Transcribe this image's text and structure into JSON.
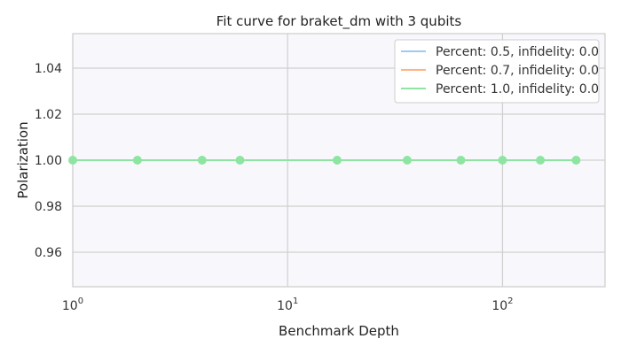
{
  "chart_data": {
    "type": "line",
    "title": "Fit curve for braket_dm with 3 qubits",
    "xlabel": "Benchmark Depth",
    "ylabel": "Polarization",
    "xscale": "log",
    "xlim": [
      1,
      300
    ],
    "ylim": [
      0.945,
      1.055
    ],
    "x_ticks": [
      {
        "base": "10",
        "exp": "0"
      },
      {
        "base": "10",
        "exp": "1"
      },
      {
        "base": "10",
        "exp": "2"
      }
    ],
    "y_ticks": [
      "0.96",
      "0.98",
      "1.00",
      "1.02",
      "1.04"
    ],
    "grid": true,
    "legend_position": "top-right",
    "series": [
      {
        "name": "Percent: 0.5, infidelity: 0.0",
        "color": "#a1c9f4",
        "x": [
          1,
          2,
          4,
          6,
          17,
          36,
          64,
          100,
          150,
          220
        ],
        "y": [
          1.0,
          1.0,
          1.0,
          1.0,
          1.0,
          1.0,
          1.0,
          1.0,
          1.0,
          1.0
        ]
      },
      {
        "name": "Percent: 0.7, infidelity: 0.0",
        "color": "#ffb482",
        "x": [
          1,
          2,
          4,
          6,
          17,
          36,
          64,
          100,
          150,
          220
        ],
        "y": [
          1.0,
          1.0,
          1.0,
          1.0,
          1.0,
          1.0,
          1.0,
          1.0,
          1.0,
          1.0
        ]
      },
      {
        "name": "Percent: 1.0, infidelity: 0.0",
        "color": "#8de5a1",
        "x": [
          1,
          2,
          4,
          6,
          17,
          36,
          64,
          100,
          150,
          220
        ],
        "y": [
          1.0,
          1.0,
          1.0,
          1.0,
          1.0,
          1.0,
          1.0,
          1.0,
          1.0,
          1.0
        ]
      }
    ]
  }
}
